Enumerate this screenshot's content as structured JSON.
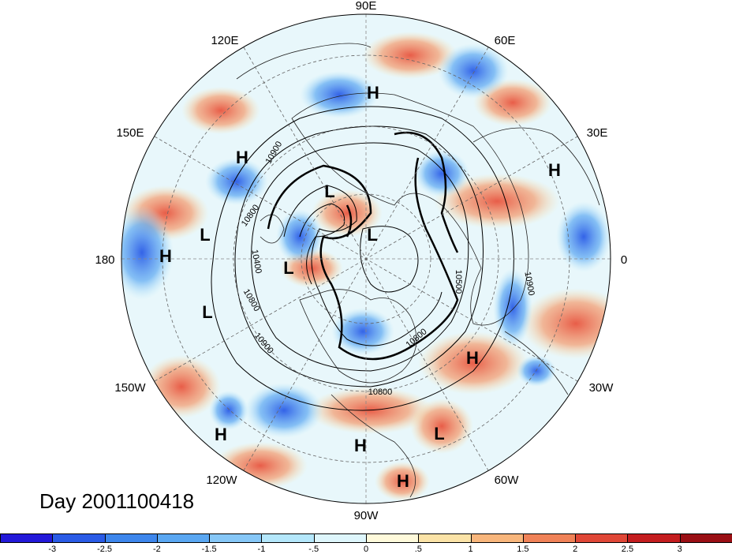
{
  "title": "Day 2001100418",
  "lon_labels": [
    {
      "key": "90E",
      "text": "90E"
    },
    {
      "key": "120E",
      "text": "120E"
    },
    {
      "key": "60E",
      "text": "60E"
    },
    {
      "key": "150E",
      "text": "150E"
    },
    {
      "key": "30E",
      "text": "30E"
    },
    {
      "key": "180",
      "text": "180"
    },
    {
      "key": "0",
      "text": "0"
    },
    {
      "key": "150W",
      "text": "150W"
    },
    {
      "key": "30W",
      "text": "30W"
    },
    {
      "key": "120W",
      "text": "120W"
    },
    {
      "key": "60W",
      "text": "60W"
    },
    {
      "key": "90W",
      "text": "90W"
    }
  ],
  "pressure_centers": [
    {
      "type": "H",
      "text": "H"
    },
    {
      "type": "H",
      "text": "H"
    },
    {
      "type": "H",
      "text": "H"
    },
    {
      "type": "H",
      "text": "H"
    },
    {
      "type": "H",
      "text": "H"
    },
    {
      "type": "H",
      "text": "H"
    },
    {
      "type": "H",
      "text": "H"
    },
    {
      "type": "H",
      "text": "H"
    },
    {
      "type": "L",
      "text": "L"
    },
    {
      "type": "L",
      "text": "L"
    },
    {
      "type": "L",
      "text": "L"
    },
    {
      "type": "L",
      "text": "L"
    },
    {
      "type": "L",
      "text": "L"
    },
    {
      "type": "L",
      "text": "L"
    }
  ],
  "contour_labels": [
    "10900",
    "10800",
    "10400",
    "10500",
    "10800",
    "10900",
    "10900",
    "10800",
    "10800"
  ],
  "colorbar": {
    "ticks": [
      "-3",
      "-2.5",
      "-2",
      "-1.5",
      "-1",
      "-.5",
      "0",
      ".5",
      "1",
      "1.5",
      "2",
      "2.5",
      "3"
    ],
    "colors": [
      "#2319d9",
      "#2a5be6",
      "#3d86ec",
      "#5aa7f2",
      "#86c7f7",
      "#b4e7fb",
      "#def6fc",
      "#fffadb",
      "#fbe3a7",
      "#f8b67c",
      "#f08258",
      "#e04737",
      "#c41d1f",
      "#9a0f14"
    ]
  }
}
